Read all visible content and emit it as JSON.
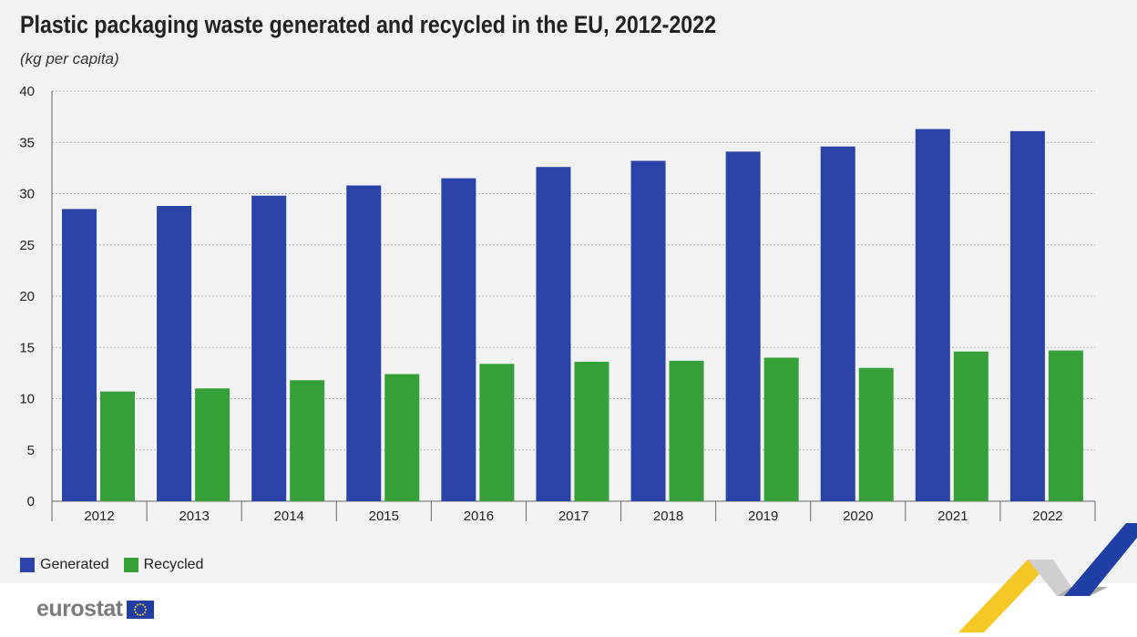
{
  "header": {
    "title": "Plastic packaging waste generated and recycled in the EU, 2012-2022",
    "subtitle": "(kg per capita)"
  },
  "legend": {
    "items": [
      {
        "label": "Generated",
        "color": "#2a43a8"
      },
      {
        "label": "Recycled",
        "color": "#34a037"
      }
    ]
  },
  "footer": {
    "logo_text": "eurostat"
  },
  "chart_data": {
    "type": "bar",
    "title": "Plastic packaging waste generated and recycled in the EU, 2012-2022",
    "subtitle": "(kg per capita)",
    "xlabel": "",
    "ylabel": "",
    "categories": [
      "2012",
      "2013",
      "2014",
      "2015",
      "2016",
      "2017",
      "2018",
      "2019",
      "2020",
      "2021",
      "2022"
    ],
    "series": [
      {
        "name": "Generated",
        "color": "#2a43a8",
        "values": [
          28.5,
          28.8,
          29.8,
          30.8,
          31.5,
          32.6,
          33.2,
          34.1,
          34.6,
          36.3,
          36.1
        ]
      },
      {
        "name": "Recycled",
        "color": "#34a037",
        "values": [
          10.7,
          11.0,
          11.8,
          12.4,
          13.4,
          13.6,
          13.7,
          14.0,
          13.0,
          14.6,
          14.7
        ]
      }
    ],
    "ylim": [
      0,
      40
    ],
    "yticks": [
      "0",
      "5",
      "10",
      "15",
      "20",
      "25",
      "30",
      "35",
      "40"
    ],
    "grid": true,
    "legend_position": "bottom-left"
  }
}
